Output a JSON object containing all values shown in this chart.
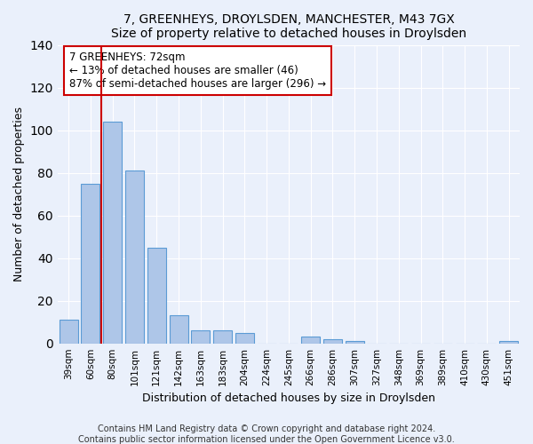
{
  "title": "7, GREENHEYS, DROYLSDEN, MANCHESTER, M43 7GX",
  "subtitle": "Size of property relative to detached houses in Droylsden",
  "xlabel": "Distribution of detached houses by size in Droylsden",
  "ylabel": "Number of detached properties",
  "categories": [
    "39sqm",
    "60sqm",
    "80sqm",
    "101sqm",
    "121sqm",
    "142sqm",
    "163sqm",
    "183sqm",
    "204sqm",
    "224sqm",
    "245sqm",
    "266sqm",
    "286sqm",
    "307sqm",
    "327sqm",
    "348sqm",
    "369sqm",
    "389sqm",
    "410sqm",
    "430sqm",
    "451sqm"
  ],
  "values": [
    11,
    75,
    104,
    81,
    45,
    13,
    6,
    6,
    5,
    0,
    0,
    3,
    2,
    1,
    0,
    0,
    0,
    0,
    0,
    0,
    1
  ],
  "bar_color": "#aec6e8",
  "bar_edge_color": "#5b9bd5",
  "background_color": "#eaf0fb",
  "grid_color": "#ffffff",
  "vline_x": 1.5,
  "vline_color": "#cc0000",
  "annotation_text": "7 GREENHEYS: 72sqm\n← 13% of detached houses are smaller (46)\n87% of semi-detached houses are larger (296) →",
  "annotation_box_color": "white",
  "annotation_box_edge_color": "#cc0000",
  "footer": "Contains HM Land Registry data © Crown copyright and database right 2024.\nContains public sector information licensed under the Open Government Licence v3.0.",
  "ylim": [
    0,
    140
  ],
  "title_fontsize": 11,
  "subtitle_fontsize": 10
}
